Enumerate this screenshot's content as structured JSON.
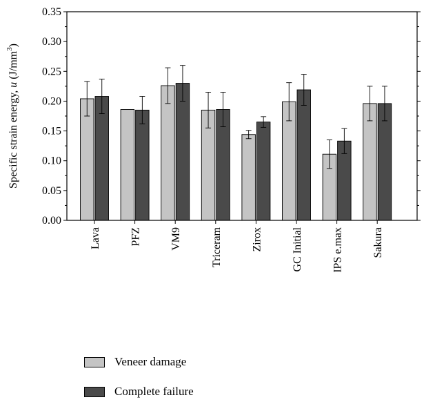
{
  "chart_data": {
    "type": "bar",
    "categories": [
      "Lava",
      "PFZ",
      "VM9",
      "Triceram",
      "Zirox",
      "GC Initial",
      "IPS e.max",
      "Sakura"
    ],
    "series": [
      {
        "name": "Veneer damage",
        "color": "#c4c4c4",
        "values": [
          0.204,
          0.186,
          0.226,
          0.185,
          0.144,
          0.199,
          0.111,
          0.196
        ],
        "errors": [
          0.029,
          0.0,
          0.03,
          0.03,
          0.007,
          0.032,
          0.024,
          0.029
        ]
      },
      {
        "name": "Complete failure",
        "color": "#4a4a4a",
        "values": [
          0.208,
          0.185,
          0.23,
          0.186,
          0.165,
          0.219,
          0.133,
          0.196
        ],
        "errors": [
          0.029,
          0.023,
          0.03,
          0.029,
          0.009,
          0.026,
          0.021,
          0.029
        ]
      }
    ],
    "ylabel_text": "Specific strain energy, ",
    "ylabel_symbol": "u",
    "ylabel_unit_open": " (J/mm",
    "ylabel_unit_exp": "3",
    "ylabel_unit_close": ")",
    "ylim": [
      0,
      0.35
    ],
    "yticks": [
      "0.00",
      "0.05",
      "0.10",
      "0.15",
      "0.20",
      "0.25",
      "0.30",
      "0.35"
    ],
    "grid": false,
    "legend_position": "bottom-left"
  }
}
